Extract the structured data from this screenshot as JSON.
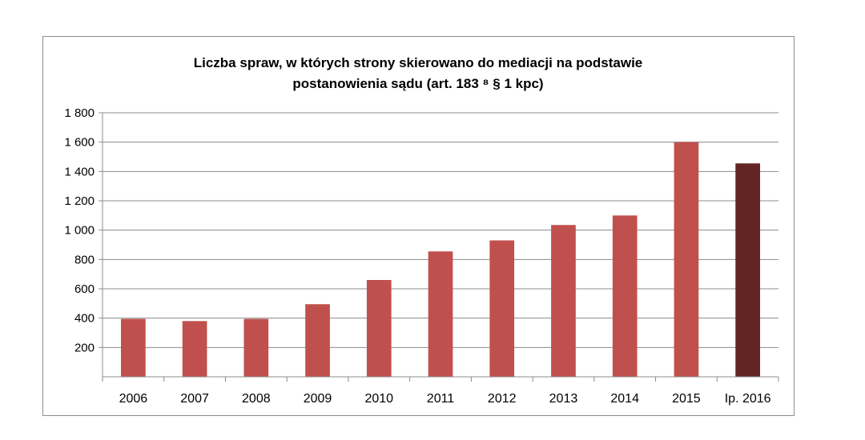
{
  "chart_data": {
    "type": "bar",
    "title": "Liczba spraw, w których strony skierowano do mediacji na podstawie postanowienia sądu (art. 183 ⁸ § 1 kpc)",
    "title_lines": [
      "Liczba spraw, w których strony skierowano do mediacji na podstawie",
      "postanowienia sądu (art. 183 ⁸ § 1 kpc)"
    ],
    "categories": [
      "2006",
      "2007",
      "2008",
      "2009",
      "2010",
      "2011",
      "2012",
      "2013",
      "2014",
      "2015",
      "Ip. 2016"
    ],
    "values": [
      395,
      380,
      395,
      495,
      660,
      855,
      930,
      1035,
      1100,
      1600,
      1455
    ],
    "bar_colors": [
      "#c0504d",
      "#c0504d",
      "#c0504d",
      "#c0504d",
      "#c0504d",
      "#c0504d",
      "#c0504d",
      "#c0504d",
      "#c0504d",
      "#c0504d",
      "#632523"
    ],
    "ylim": [
      0,
      1800
    ],
    "yticks": [
      200,
      400,
      600,
      800,
      1000,
      1200,
      1400,
      1600,
      1800
    ],
    "ytick_labels": [
      "200",
      "400",
      "600",
      "800",
      "1 000",
      "1 200",
      "1 400",
      "1 600",
      "1 800"
    ],
    "xlabel": "",
    "ylabel": "",
    "grid": true,
    "legend": "none"
  }
}
